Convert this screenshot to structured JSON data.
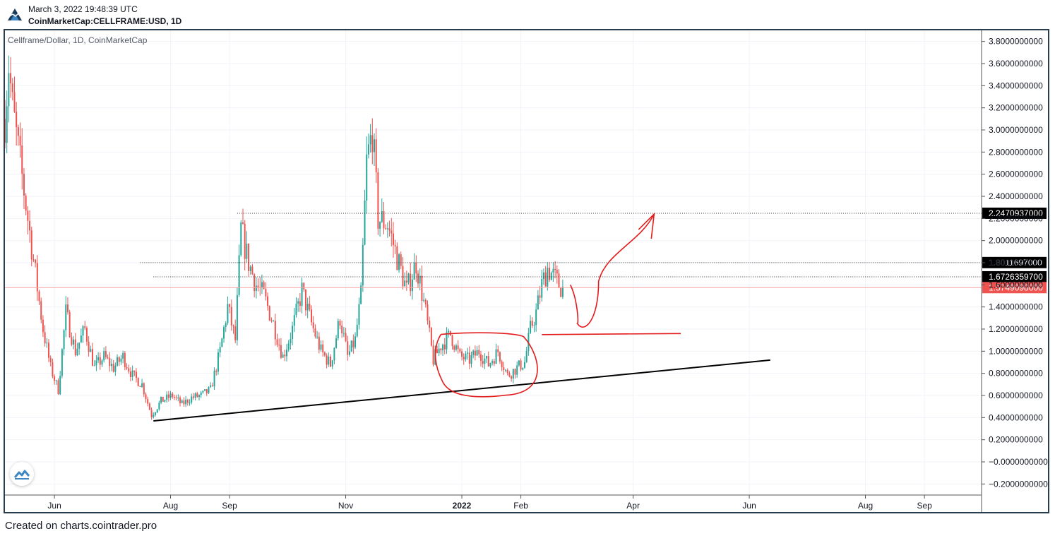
{
  "header": {
    "timestamp": "March 3, 2022 19:48:39 UTC",
    "symbol_line": "CoinMarketCap:CELLFRAME:USD, 1D"
  },
  "footer": {
    "credit": "Created on charts.cointrader.pro"
  },
  "colors": {
    "up": "#26a69a",
    "down": "#ef5350",
    "axis_text": "#131722",
    "frame": "#2a3d4d",
    "annotation_red": "#e31b1b",
    "annotation_black": "#000000",
    "price_label_bg": "#000000",
    "current_price_bg": "#ef5350"
  },
  "chart_data": {
    "type": "candlestick",
    "title": "Cellframe/Dollar, 1D, CoinMarketCap",
    "y_ticks": [
      "3.8000000000",
      "3.6000000000",
      "3.4000000000",
      "3.2000000000",
      "3.0000000000",
      "2.8000000000",
      "2.6000000000",
      "2.4000000000",
      "2.2000000000",
      "2.0000000000",
      "1.8000000000",
      "1.6000000000",
      "1.4000000000",
      "1.2000000000",
      "1.0000000000",
      "0.8000000000",
      "0.6000000000",
      "0.4000000000",
      "0.2000000000",
      "−0.0000000000",
      "−0.2000000000"
    ],
    "y_range": [
      -0.3,
      3.9
    ],
    "x_range": [
      "2021-05-06",
      "2022-10-01"
    ],
    "x_ticks": [
      {
        "label": "Jun",
        "date": "2021-06-01",
        "bold": false
      },
      {
        "label": "Aug",
        "date": "2021-08-01",
        "bold": false
      },
      {
        "label": "Sep",
        "date": "2021-09-01",
        "bold": false
      },
      {
        "label": "Nov",
        "date": "2021-11-01",
        "bold": false
      },
      {
        "label": "2022",
        "date": "2022-01-01",
        "bold": true
      },
      {
        "label": "Feb",
        "date": "2022-02-01",
        "bold": false
      },
      {
        "label": "Apr",
        "date": "2022-04-01",
        "bold": false
      },
      {
        "label": "Jun",
        "date": "2022-06-01",
        "bold": false
      },
      {
        "label": "Aug",
        "date": "2022-08-01",
        "bold": false
      },
      {
        "label": "Sep",
        "date": "2022-09-01",
        "bold": false
      }
    ],
    "price_lines": [
      {
        "value": 2.2470937,
        "label": "2.2470937000",
        "from": "2021-09-05",
        "style": "dotted",
        "kind": "marked"
      },
      {
        "value": 1.8011697,
        "label": "1.8011697000",
        "from": "2021-07-16",
        "style": "dotted",
        "kind": "marked"
      },
      {
        "value": 1.67263597,
        "label": "1.6726359700",
        "from": "2021-07-23",
        "style": "dotted",
        "kind": "marked"
      },
      {
        "value": 1.5749098,
        "label": "1.5749098000",
        "from": "2021-05-06",
        "style": "solid",
        "kind": "current"
      }
    ],
    "trendline": {
      "from": {
        "date": "2021-07-23",
        "value": 0.37
      },
      "to": {
        "date": "2022-06-12",
        "value": 0.92
      }
    },
    "annotations": [
      {
        "type": "horizontal",
        "from": {
          "date": "2022-02-12",
          "value": 1.15
        },
        "to": {
          "date": "2022-04-26",
          "value": 1.16
        }
      },
      {
        "type": "ellipse",
        "center": {
          "date": "2022-01-13",
          "value": 0.89
        }
      },
      {
        "type": "arrow",
        "from": {
          "date": "2022-02-27",
          "value": 1.6
        },
        "to": {
          "date": "2022-04-12",
          "value": 2.24
        }
      }
    ],
    "waypoints": [
      [
        "2021-05-06",
        3.1
      ],
      [
        "2021-05-08",
        3.6
      ],
      [
        "2021-05-10",
        3.2
      ],
      [
        "2021-05-14",
        2.7
      ],
      [
        "2021-05-18",
        2.2
      ],
      [
        "2021-05-22",
        1.7
      ],
      [
        "2021-05-26",
        1.2
      ],
      [
        "2021-05-30",
        0.85
      ],
      [
        "2021-06-03",
        0.65
      ],
      [
        "2021-06-07",
        1.35
      ],
      [
        "2021-06-12",
        1.0
      ],
      [
        "2021-06-17",
        1.2
      ],
      [
        "2021-06-22",
        0.85
      ],
      [
        "2021-06-27",
        0.95
      ],
      [
        "2021-07-02",
        0.85
      ],
      [
        "2021-07-07",
        0.95
      ],
      [
        "2021-07-12",
        0.78
      ],
      [
        "2021-07-17",
        0.7
      ],
      [
        "2021-07-22",
        0.42
      ],
      [
        "2021-07-27",
        0.55
      ],
      [
        "2021-08-02",
        0.6
      ],
      [
        "2021-08-07",
        0.52
      ],
      [
        "2021-08-12",
        0.58
      ],
      [
        "2021-08-17",
        0.6
      ],
      [
        "2021-08-22",
        0.65
      ],
      [
        "2021-08-27",
        1.0
      ],
      [
        "2021-08-31",
        1.4
      ],
      [
        "2021-09-04",
        1.1
      ],
      [
        "2021-09-07",
        2.1
      ],
      [
        "2021-09-11",
        1.8
      ],
      [
        "2021-09-15",
        1.6
      ],
      [
        "2021-09-19",
        1.5
      ],
      [
        "2021-09-24",
        1.25
      ],
      [
        "2021-09-29",
        0.95
      ],
      [
        "2021-10-04",
        1.2
      ],
      [
        "2021-10-09",
        1.55
      ],
      [
        "2021-10-14",
        1.25
      ],
      [
        "2021-10-19",
        1.0
      ],
      [
        "2021-10-24",
        0.88
      ],
      [
        "2021-10-29",
        1.3
      ],
      [
        "2021-11-02",
        0.95
      ],
      [
        "2021-11-06",
        1.1
      ],
      [
        "2021-11-09",
        1.5
      ],
      [
        "2021-11-12",
        2.7
      ],
      [
        "2021-11-15",
        3.0
      ],
      [
        "2021-11-18",
        2.2
      ],
      [
        "2021-11-23",
        2.15
      ],
      [
        "2021-11-28",
        1.85
      ],
      [
        "2021-12-03",
        1.55
      ],
      [
        "2021-12-08",
        1.8
      ],
      [
        "2021-12-13",
        1.35
      ],
      [
        "2021-12-17",
        0.92
      ],
      [
        "2021-12-21",
        1.05
      ],
      [
        "2021-12-26",
        1.15
      ],
      [
        "2021-12-31",
        0.95
      ],
      [
        "2022-01-05",
        0.92
      ],
      [
        "2022-01-10",
        1.0
      ],
      [
        "2022-01-15",
        0.88
      ],
      [
        "2022-01-20",
        1.0
      ],
      [
        "2022-01-25",
        0.78
      ],
      [
        "2022-01-30",
        0.85
      ],
      [
        "2022-02-03",
        0.9
      ],
      [
        "2022-02-06",
        1.2
      ],
      [
        "2022-02-09",
        1.35
      ],
      [
        "2022-02-12",
        1.6
      ],
      [
        "2022-02-15",
        1.75
      ],
      [
        "2022-02-18",
        1.68
      ],
      [
        "2022-02-21",
        1.6
      ],
      [
        "2022-02-24",
        1.55
      ]
    ]
  }
}
